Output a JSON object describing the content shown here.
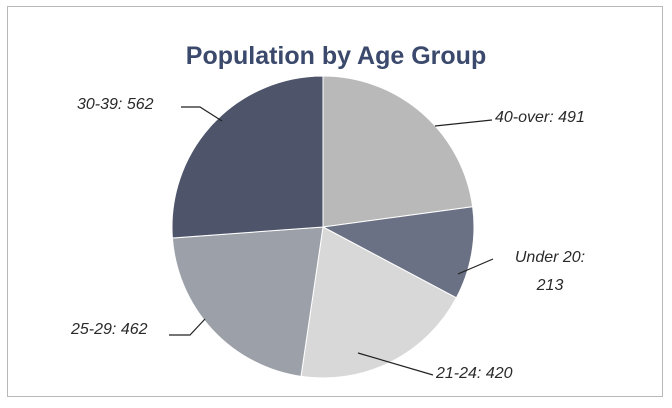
{
  "chart_data": {
    "type": "pie",
    "title": "Population by Age Group",
    "slices": [
      {
        "label": "40-over",
        "value": 491,
        "color": "#b9b9b9",
        "display": "40-over: 491"
      },
      {
        "label": "Under 20",
        "value": 213,
        "color": "#6b7184",
        "display_lines": [
          "Under 20:",
          "213"
        ]
      },
      {
        "label": "21-24",
        "value": 420,
        "color": "#d8d8d8",
        "display": "21-24: 420"
      },
      {
        "label": "25-29",
        "value": 462,
        "color": "#9ca0a8",
        "display": "25-29: 462"
      },
      {
        "label": "30-39",
        "value": 562,
        "color": "#4e556a",
        "display": "30-39: 562"
      }
    ],
    "legend": "none",
    "data_labels": "outside with leader lines"
  }
}
